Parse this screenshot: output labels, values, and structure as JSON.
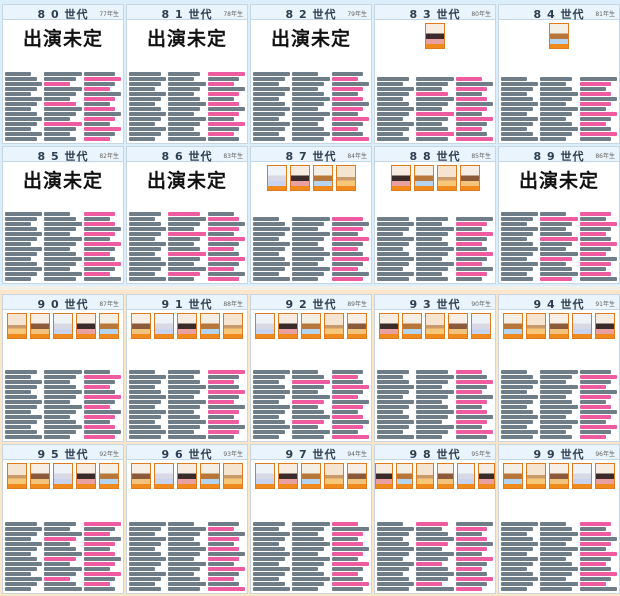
{
  "generation_suffix": "世代",
  "undecided_label": "出演未定",
  "generations": [
    {
      "number": "80",
      "year": "77年生",
      "undecided": true
    },
    {
      "number": "81",
      "year": "78年生",
      "undecided": true
    },
    {
      "number": "82",
      "year": "79年生",
      "undecided": true
    },
    {
      "number": "83",
      "year": "80年生",
      "undecided": false
    },
    {
      "number": "84",
      "year": "81年生",
      "undecided": false
    },
    {
      "number": "85",
      "year": "82年生",
      "undecided": true
    },
    {
      "number": "86",
      "year": "83年生",
      "undecided": true
    },
    {
      "number": "87",
      "year": "84年生",
      "undecided": false
    },
    {
      "number": "88",
      "year": "85年生",
      "undecided": false
    },
    {
      "number": "89",
      "year": "86年生",
      "undecided": true
    },
    {
      "number": "90",
      "year": "87年生",
      "undecided": false
    },
    {
      "number": "91",
      "year": "88年生",
      "undecided": false
    },
    {
      "number": "92",
      "year": "89年生",
      "undecided": false
    },
    {
      "number": "93",
      "year": "90年生",
      "undecided": false
    },
    {
      "number": "94",
      "year": "91年生",
      "undecided": false
    },
    {
      "number": "95",
      "year": "92年生",
      "undecided": false
    },
    {
      "number": "96",
      "year": "93年生",
      "undecided": false
    },
    {
      "number": "97",
      "year": "94年生",
      "undecided": false
    },
    {
      "number": "98",
      "year": "95年生",
      "undecided": false
    },
    {
      "number": "99",
      "year": "96年生",
      "undecided": false
    }
  ],
  "colors": {
    "top_board": "#dbeefb",
    "bottom_board": "#fbe6c9",
    "highlight_name": "#ef5ba1",
    "portrait_frame": "#e07a1f"
  }
}
